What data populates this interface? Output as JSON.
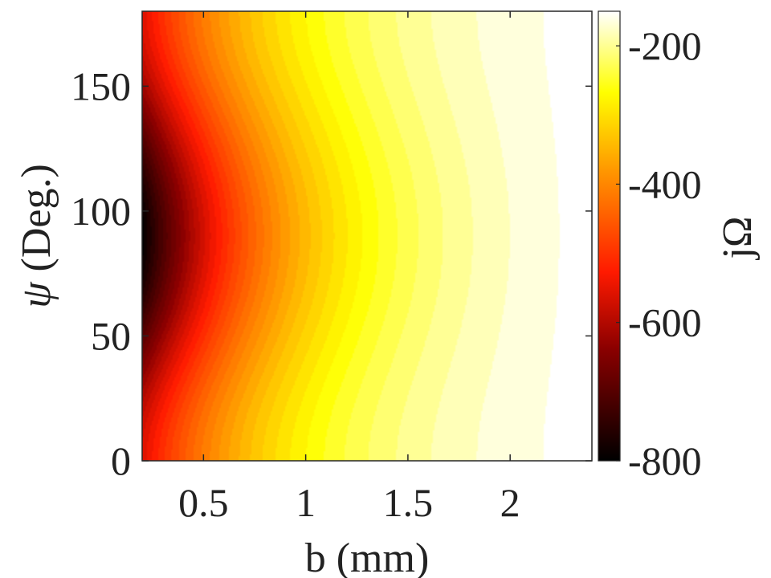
{
  "chart_data": {
    "type": "heatmap",
    "title": "",
    "xlabel": "b (mm)",
    "ylabel_symbol": "ψ",
    "ylabel_rest": " (Deg.)",
    "colorbar_label": "jΩ",
    "xlim": [
      0.2,
      2.4
    ],
    "ylim": [
      0,
      180
    ],
    "xticks": [
      {
        "value": 0.5,
        "label": "0.5"
      },
      {
        "value": 1,
        "label": "1"
      },
      {
        "value": 1.5,
        "label": "1.5"
      },
      {
        "value": 2,
        "label": "2"
      }
    ],
    "yticks": [
      {
        "value": 0,
        "label": "0"
      },
      {
        "value": 50,
        "label": "50"
      },
      {
        "value": 100,
        "label": "100"
      },
      {
        "value": 150,
        "label": "150"
      }
    ],
    "colorbar_range": [
      -800,
      -150
    ],
    "colorbar_ticks": [
      {
        "value": -200,
        "label": "-200"
      },
      {
        "value": -400,
        "label": "-400"
      },
      {
        "value": -600,
        "label": "-600"
      },
      {
        "value": -800,
        "label": "-800"
      }
    ],
    "colormap": "hot",
    "field": {
      "description_free": true,
      "peak_value": -800,
      "peak_at": {
        "b": 0.2,
        "psi": 90
      },
      "edge_value_at_psi_extremes_b_min": -560,
      "value_at_b_max": -150
    },
    "grid": false,
    "legend": "colorbar-right"
  }
}
